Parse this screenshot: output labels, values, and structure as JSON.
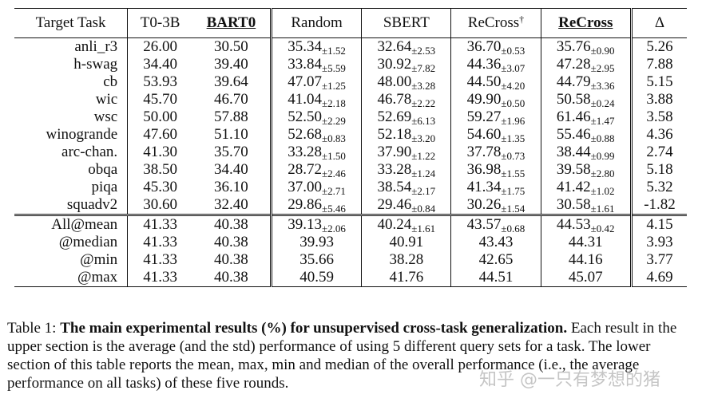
{
  "table": {
    "headers": [
      "Target Task",
      "T0-3B",
      "BART0",
      "Random",
      "SBERT",
      "ReCross",
      "ReCross",
      "Δ"
    ],
    "recross_dagger": "†",
    "rows": [
      {
        "task": "anli_r3",
        "t0": "26.00",
        "bart0": "30.50",
        "random": "35.34",
        "random_std": "±1.52",
        "sbert": "32.64",
        "sbert_std": "±2.53",
        "recross_d": "36.70",
        "recross_d_std": "±0.53",
        "recross": "35.76",
        "recross_std": "±0.90",
        "delta": "5.26"
      },
      {
        "task": "h-swag",
        "t0": "34.40",
        "bart0": "39.40",
        "random": "33.84",
        "random_std": "±5.59",
        "sbert": "30.92",
        "sbert_std": "±7.82",
        "recross_d": "44.36",
        "recross_d_std": "±3.07",
        "recross": "47.28",
        "recross_std": "±2.95",
        "delta": "7.88"
      },
      {
        "task": "cb",
        "t0": "53.93",
        "bart0": "39.64",
        "random": "47.07",
        "random_std": "±1.25",
        "sbert": "48.00",
        "sbert_std": "±3.28",
        "recross_d": "44.50",
        "recross_d_std": "±4.20",
        "recross": "44.79",
        "recross_std": "±3.36",
        "delta": "5.15"
      },
      {
        "task": "wic",
        "t0": "45.70",
        "bart0": "46.70",
        "random": "41.04",
        "random_std": "±2.18",
        "sbert": "46.78",
        "sbert_std": "±2.22",
        "recross_d": "49.90",
        "recross_d_std": "±0.50",
        "recross": "50.58",
        "recross_std": "±0.24",
        "delta": "3.88"
      },
      {
        "task": "wsc",
        "t0": "50.00",
        "bart0": "57.88",
        "random": "52.50",
        "random_std": "±2.29",
        "sbert": "52.69",
        "sbert_std": "±6.13",
        "recross_d": "59.27",
        "recross_d_std": "±1.96",
        "recross": "61.46",
        "recross_std": "±1.47",
        "delta": "3.58"
      },
      {
        "task": "winogrande",
        "t0": "47.60",
        "bart0": "51.10",
        "random": "52.68",
        "random_std": "±0.83",
        "sbert": "52.18",
        "sbert_std": "±3.20",
        "recross_d": "54.60",
        "recross_d_std": "±1.35",
        "recross": "55.46",
        "recross_std": "±0.88",
        "delta": "4.36"
      },
      {
        "task": "arc-chan.",
        "t0": "41.30",
        "bart0": "35.70",
        "random": "33.28",
        "random_std": "±1.50",
        "sbert": "37.90",
        "sbert_std": "±1.22",
        "recross_d": "37.78",
        "recross_d_std": "±0.73",
        "recross": "38.44",
        "recross_std": "±0.99",
        "delta": "2.74"
      },
      {
        "task": "obqa",
        "t0": "38.50",
        "bart0": "34.40",
        "random": "28.72",
        "random_std": "±2.46",
        "sbert": "33.28",
        "sbert_std": "±1.24",
        "recross_d": "36.98",
        "recross_d_std": "±1.55",
        "recross": "39.58",
        "recross_std": "±2.80",
        "delta": "5.18"
      },
      {
        "task": "piqa",
        "t0": "45.30",
        "bart0": "36.10",
        "random": "37.00",
        "random_std": "±2.71",
        "sbert": "38.54",
        "sbert_std": "±2.17",
        "recross_d": "41.34",
        "recross_d_std": "±1.75",
        "recross": "41.42",
        "recross_std": "±1.02",
        "delta": "5.32"
      },
      {
        "task": "squadv2",
        "t0": "30.60",
        "bart0": "32.40",
        "random": "29.86",
        "random_std": "±5.46",
        "sbert": "29.46",
        "sbert_std": "±0.84",
        "recross_d": "30.26",
        "recross_d_std": "±1.54",
        "recross": "30.58",
        "recross_std": "±1.61",
        "delta": "-1.82"
      }
    ],
    "summary": [
      {
        "task": "All@mean",
        "t0": "41.33",
        "bart0": "40.38",
        "random": "39.13",
        "random_std": "±2.06",
        "sbert": "40.24",
        "sbert_std": "±1.61",
        "recross_d": "43.57",
        "recross_d_std": "±0.68",
        "recross": "44.53",
        "recross_std": "±0.42",
        "delta": "4.15"
      },
      {
        "task": "@median",
        "t0": "41.33",
        "bart0": "40.38",
        "random": "39.93",
        "random_std": "",
        "sbert": "40.91",
        "sbert_std": "",
        "recross_d": "43.43",
        "recross_d_std": "",
        "recross": "44.31",
        "recross_std": "",
        "delta": "3.93"
      },
      {
        "task": "@min",
        "t0": "41.33",
        "bart0": "40.38",
        "random": "35.66",
        "random_std": "",
        "sbert": "38.28",
        "sbert_std": "",
        "recross_d": "42.65",
        "recross_d_std": "",
        "recross": "44.16",
        "recross_std": "",
        "delta": "3.77"
      },
      {
        "task": "@max",
        "t0": "41.33",
        "bart0": "40.38",
        "random": "40.59",
        "random_std": "",
        "sbert": "41.76",
        "sbert_std": "",
        "recross_d": "44.51",
        "recross_d_std": "",
        "recross": "45.07",
        "recross_std": "",
        "delta": "4.69"
      }
    ]
  },
  "caption": {
    "prefix": "Table 1: ",
    "bold": "The main experimental results (%) for unsupervised cross-task generalization.",
    "rest": " Each result in the upper section is the average (and the std) performance of using 5 different query sets for a task. The lower section of this table reports the mean, max, min and median of the overall performance (i.e., the average performance on all tasks) of these five rounds."
  },
  "watermark": "知乎 @一只有梦想的猪"
}
